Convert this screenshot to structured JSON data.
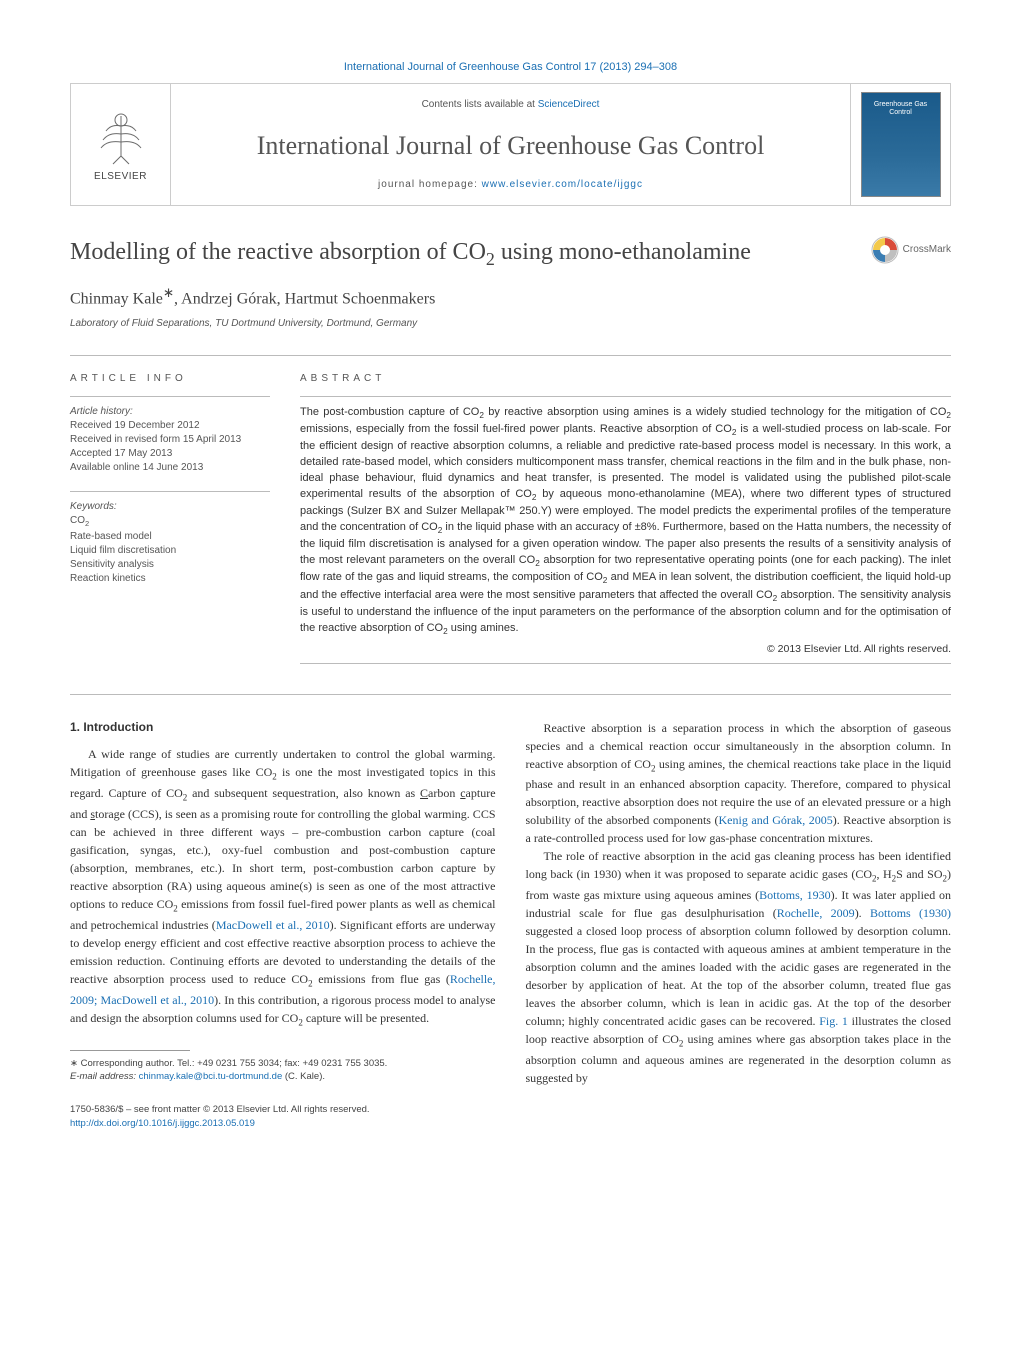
{
  "top_citation": "International Journal of Greenhouse Gas Control 17 (2013) 294–308",
  "header": {
    "contents_prefix": "Contents lists available at ",
    "contents_link": "ScienceDirect",
    "journal": "International Journal of Greenhouse Gas Control",
    "homepage_prefix": "journal homepage: ",
    "homepage_link": "www.elsevier.com/locate/ijggc",
    "publisher_label": "ELSEVIER",
    "cover_title": "Greenhouse Gas Control"
  },
  "crossmark_label": "CrossMark",
  "title_html": "Modelling of the reactive absorption of CO<sub>2</sub> using mono-ethanolamine",
  "authors_html": "Chinmay Kale<sup>∗</sup>, Andrzej Górak, Hartmut Schoenmakers",
  "affiliation": "Laboratory of Fluid Separations, TU Dortmund University, Dortmund, Germany",
  "article_info": {
    "label": "ARTICLE INFO",
    "history_label": "Article history:",
    "history": [
      "Received 19 December 2012",
      "Received in revised form 15 April 2013",
      "Accepted 17 May 2013",
      "Available online 14 June 2013"
    ],
    "keywords_label": "Keywords:",
    "keywords_html": [
      "CO<sub>2</sub>",
      "Rate-based model",
      "Liquid film discretisation",
      "Sensitivity analysis",
      "Reaction kinetics"
    ]
  },
  "abstract": {
    "label": "ABSTRACT",
    "text_html": "The post-combustion capture of CO<sub>2</sub> by reactive absorption using amines is a widely studied technology for the mitigation of CO<sub>2</sub> emissions, especially from the fossil fuel-fired power plants. Reactive absorption of CO<sub>2</sub> is a well-studied process on lab-scale. For the efficient design of reactive absorption columns, a reliable and predictive rate-based process model is necessary. In this work, a detailed rate-based model, which considers multicomponent mass transfer, chemical reactions in the film and in the bulk phase, non-ideal phase behaviour, fluid dynamics and heat transfer, is presented. The model is validated using the published pilot-scale experimental results of the absorption of CO<sub>2</sub> by aqueous mono-ethanolamine (MEA), where two different types of structured packings (Sulzer BX and Sulzer Mellapak™ 250.Y) were employed. The model predicts the experimental profiles of the temperature and the concentration of CO<sub>2</sub> in the liquid phase with an accuracy of ±8%. Furthermore, based on the Hatta numbers, the necessity of the liquid film discretisation is analysed for a given operation window. The paper also presents the results of a sensitivity analysis of the most relevant parameters on the overall CO<sub>2</sub> absorption for two representative operating points (one for each packing). The inlet flow rate of the gas and liquid streams, the composition of CO<sub>2</sub> and MEA in lean solvent, the distribution coefficient, the liquid hold-up and the effective interfacial area were the most sensitive parameters that affected the overall CO<sub>2</sub> absorption. The sensitivity analysis is useful to understand the influence of the input parameters on the performance of the absorption column and for the optimisation of the reactive absorption of CO<sub>2</sub> using amines.",
    "copyright": "© 2013 Elsevier Ltd. All rights reserved."
  },
  "intro": {
    "heading": "1. Introduction",
    "col1_html": "A wide range of studies are currently undertaken to control the global warming. Mitigation of greenhouse gases like CO<sub>2</sub> is one the most investigated topics in this regard. Capture of CO<sub>2</sub> and subsequent sequestration, also known as <u>C</u>arbon <u>c</u>apture and <u>s</u>torage (CCS), is seen as a promising route for controlling the global warming. CCS can be achieved in three different ways – pre-combustion carbon capture (coal gasification, syngas, etc.), oxy-fuel combustion and post-combustion capture (absorption, membranes, etc.). In short term, post-combustion carbon capture by reactive absorption (RA) using aqueous amine(s) is seen as one of the most attractive options to reduce CO<sub>2</sub> emissions from fossil fuel-fired power plants as well as chemical and petrochemical industries (<span class=\"link\">MacDowell et al., 2010</span>). Significant efforts are underway to develop energy efficient and cost effective reactive absorption process to achieve the emission reduction. Continuing efforts are devoted to understanding the details of the reactive absorption process used to reduce CO<sub>2</sub> emissions from flue gas (<span class=\"link\">Rochelle, 2009; MacDowell et al., 2010</span>). In this contribution, a rigorous process model to analyse and design the absorption columns used for CO<sub>2</sub> capture will be presented.",
    "col2_p1_html": "Reactive absorption is a separation process in which the absorption of gaseous species and a chemical reaction occur simultaneously in the absorption column. In reactive absorption of CO<sub>2</sub> using amines, the chemical reactions take place in the liquid phase and result in an enhanced absorption capacity. Therefore, compared to physical absorption, reactive absorption does not require the use of an elevated pressure or a high solubility of the absorbed components (<span class=\"link\">Kenig and Górak, 2005</span>). Reactive absorption is a rate-controlled process used for low gas-phase concentration mixtures.",
    "col2_p2_html": "The role of reactive absorption in the acid gas cleaning process has been identified long back (in 1930) when it was proposed to separate acidic gases (CO<sub>2</sub>, H<sub>2</sub>S and SO<sub>2</sub>) from waste gas mixture using aqueous amines (<span class=\"link\">Bottoms, 1930</span>). It was later applied on industrial scale for flue gas desulphurisation (<span class=\"link\">Rochelle, 2009</span>). <span class=\"link\">Bottoms (1930)</span> suggested a closed loop process of absorption column followed by desorption column. In the process, flue gas is contacted with aqueous amines at ambient temperature in the absorption column and the amines loaded with the acidic gases are regenerated in the desorber by application of heat. At the top of the absorber column, treated flue gas leaves the absorber column, which is lean in acidic gas. At the top of the desorber column; highly concentrated acidic gases can be recovered. <span class=\"link\">Fig. 1</span> illustrates the closed loop reactive absorption of CO<sub>2</sub> using amines where gas absorption takes place in the absorption column and aqueous amines are regenerated in the desorption column as suggested by"
  },
  "footnote": {
    "corr_html": "∗ Corresponding author. Tel.: +49 0231 755 3034; fax: +49 0231 755 3035.",
    "email_label": "E-mail address:",
    "email": "chinmay.kale@bci.tu-dortmund.de",
    "email_suffix": " (C. Kale)."
  },
  "bottom": {
    "issn_line": "1750-5836/$ – see front matter © 2013 Elsevier Ltd. All rights reserved.",
    "doi": "http://dx.doi.org/10.1016/j.ijggc.2013.05.019"
  },
  "colors": {
    "link": "#1a6fb3",
    "text": "#333333",
    "muted": "#555555",
    "border": "#cccccc",
    "cover_bg_top": "#1a5a8a",
    "cover_bg_bot": "#3a7aa8",
    "crossmark_red": "#d94b3a",
    "crossmark_yellow": "#f3c94b",
    "crossmark_blue": "#3a7db3",
    "crossmark_gray": "#bfbfbf"
  }
}
